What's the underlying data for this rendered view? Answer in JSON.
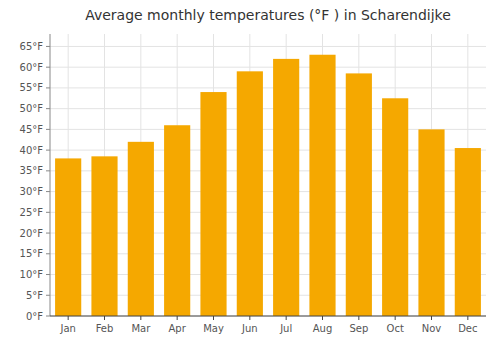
{
  "chart_data": {
    "type": "bar",
    "title": "Average monthly temperatures (°F ) in Scharendijke",
    "categories": [
      "Jan",
      "Feb",
      "Mar",
      "Apr",
      "May",
      "Jun",
      "Jul",
      "Aug",
      "Sep",
      "Oct",
      "Nov",
      "Dec"
    ],
    "values": [
      38,
      38.5,
      42,
      46,
      54,
      59,
      62,
      63,
      58.5,
      52.5,
      45,
      40.5
    ],
    "color": "#F5A800",
    "ylim": [
      0,
      68
    ],
    "yticks": [
      {
        "value": 0,
        "label": "0°F"
      },
      {
        "value": 5,
        "label": "5°F"
      },
      {
        "value": 10,
        "label": "10°F"
      },
      {
        "value": 15,
        "label": "15°F"
      },
      {
        "value": 20,
        "label": "20°F"
      },
      {
        "value": 25,
        "label": "25°F"
      },
      {
        "value": 30,
        "label": "30°F"
      },
      {
        "value": 35,
        "label": "35°F"
      },
      {
        "value": 40,
        "label": "40°F"
      },
      {
        "value": 45,
        "label": "45°F"
      },
      {
        "value": 50,
        "label": "50°F"
      },
      {
        "value": 55,
        "label": "55°F"
      },
      {
        "value": 60,
        "label": "60°F"
      },
      {
        "value": 65,
        "label": "65°F"
      }
    ],
    "grid": true
  }
}
